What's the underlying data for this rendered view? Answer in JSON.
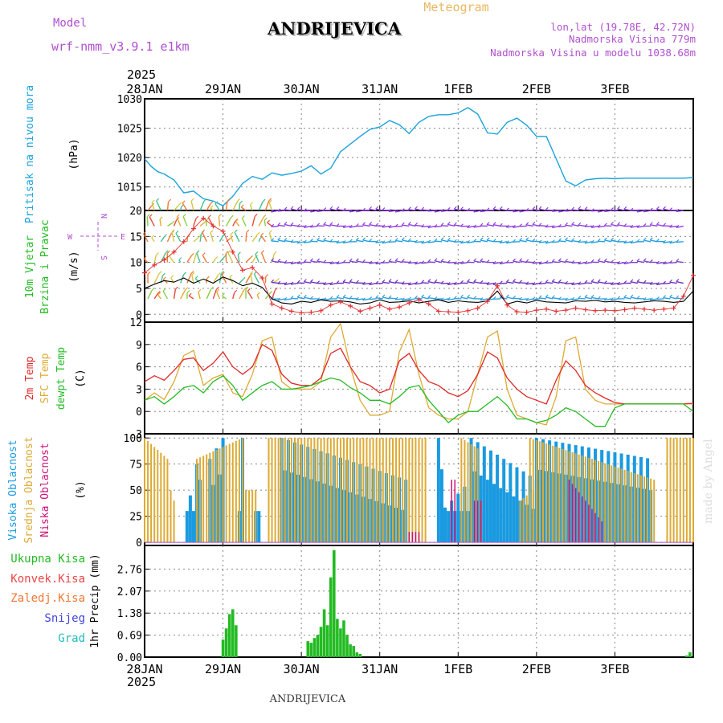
{
  "header": {
    "model_label": "Model",
    "model_name": "wrf-nmm_v3.9.1 e1km",
    "station": "ANDRIJEVICA",
    "meteogram": "Meteogram",
    "lonlat": "lon,lat (19.78E, 42.72N)",
    "elevation": "Nadmorska Visina 779m",
    "model_elevation": "Nadmorska Visina u modelu 1038.68m",
    "year": "2025"
  },
  "footer": {
    "station": "ANDRIJEVICA",
    "year": "2025",
    "credit": "made by Angel"
  },
  "colors": {
    "pressure": "#1aa3dd",
    "purple": "#b050d0",
    "green": "#22bb22",
    "red": "#e02828",
    "orange": "#ddaa33",
    "magenta": "#cc1177",
    "blue_bar": "#1a9ae0",
    "konvek": "#ee4444",
    "zaledj": "#ee7733",
    "snijeg": "#4444dd",
    "grad": "#22bbbb",
    "wind_line": "#000000",
    "gust_marker": "#e03030"
  },
  "chart_data": [
    {
      "type": "line",
      "panel": "pressure",
      "ylabel_left": "Pritisak na nivou mora",
      "ylabel": "(hPa)",
      "ylim": [
        1011,
        1030
      ],
      "yticks": [
        "1030",
        "1025",
        "1020",
        "1015"
      ],
      "xtick_labels": [
        "28JAN",
        "29JAN",
        "30JAN",
        "31JAN",
        "1FEB",
        "2FEB",
        "3FEB"
      ],
      "grid": true,
      "x_unit": "hours since 28JAN 00:00",
      "x": [
        0,
        2,
        4,
        6,
        9,
        12,
        15,
        18,
        21,
        24,
        27,
        30,
        33,
        36,
        39,
        42,
        45,
        48,
        51,
        54,
        57,
        60,
        63,
        66,
        69,
        72,
        75,
        78,
        81,
        84,
        87,
        90,
        93,
        96,
        99,
        102,
        105,
        108,
        111,
        114,
        117,
        120,
        123,
        126,
        129,
        132,
        135,
        138,
        141,
        144,
        147,
        150,
        153,
        156,
        159,
        162,
        165,
        168
      ],
      "series": [
        {
          "values": [
            1019.8,
            1018.5,
            1017.6,
            1017.2,
            1016.2,
            1014.0,
            1014.3,
            1013.0,
            1012.6,
            1011.8,
            1013.4,
            1015.6,
            1016.8,
            1016.3,
            1017.4,
            1017.0,
            1017.3,
            1017.7,
            1018.6,
            1017.2,
            1018.2,
            1021.0,
            1022.3,
            1023.6,
            1024.8,
            1025.2,
            1026.3,
            1025.6,
            1024.1,
            1026.0,
            1027.0,
            1027.3,
            1027.3,
            1027.6,
            1028.5,
            1027.4,
            1024.2,
            1024.0,
            1026.0,
            1026.7,
            1025.5,
            1023.6,
            1023.6,
            1019.8,
            1016.0,
            1015.2,
            1016.2,
            1016.4,
            1016.5,
            1016.4,
            1016.5,
            1016.5,
            1016.5,
            1016.5,
            1016.5,
            1016.5,
            1016.5,
            1016.6
          ]
        }
      ]
    },
    {
      "type": "line",
      "panel": "wind",
      "ylabel_left": [
        "10m Vjetar",
        "Brzina i Pravac"
      ],
      "ylabel": "(m/s)",
      "ylim": [
        -1.5,
        20
      ],
      "yticks": [
        "20",
        "15",
        "10",
        "5",
        "0"
      ],
      "compass": {
        "n": "N",
        "s": "S",
        "e": "E",
        "w": "W"
      },
      "barb_levels": [
        20,
        17,
        14,
        10,
        6,
        3
      ],
      "x": [
        0,
        3,
        6,
        9,
        12,
        15,
        18,
        21,
        24,
        27,
        30,
        33,
        36,
        39,
        42,
        45,
        48,
        51,
        54,
        57,
        60,
        63,
        66,
        69,
        72,
        75,
        78,
        81,
        84,
        87,
        90,
        93,
        96,
        99,
        102,
        105,
        108,
        111,
        114,
        117,
        120,
        123,
        126,
        129,
        132,
        135,
        138,
        141,
        144,
        147,
        150,
        153,
        156,
        159,
        162,
        165,
        168
      ],
      "series": [
        {
          "name": "wind",
          "values": [
            5.0,
            5.8,
            6.5,
            6.2,
            7.0,
            6.0,
            6.8,
            6.0,
            7.2,
            6.5,
            5.5,
            6.0,
            5.2,
            3.0,
            2.2,
            2.0,
            2.5,
            2.3,
            2.8,
            2.5,
            2.6,
            2.4,
            2.0,
            2.2,
            2.8,
            2.3,
            2.4,
            2.6,
            2.2,
            2.5,
            2.8,
            2.3,
            2.6,
            2.4,
            2.3,
            2.6,
            4.5,
            2.0,
            2.5,
            2.2,
            2.7,
            2.4,
            2.3,
            2.2,
            2.6,
            2.5,
            2.7,
            2.4,
            2.5,
            2.3,
            2.2,
            2.4,
            2.6,
            2.5,
            2.3,
            2.5,
            4.5
          ]
        },
        {
          "name": "gust",
          "values": [
            8.0,
            9.5,
            10.5,
            12.0,
            14.0,
            16.5,
            18.5,
            17.0,
            16.0,
            12.0,
            8.5,
            9.0,
            7.0,
            2.0,
            1.2,
            0.6,
            0.3,
            0.4,
            0.7,
            1.8,
            2.4,
            1.6,
            0.6,
            1.2,
            1.8,
            1.0,
            1.4,
            2.2,
            2.8,
            2.0,
            0.6,
            0.5,
            0.4,
            0.7,
            1.2,
            2.5,
            5.5,
            1.8,
            0.5,
            0.4,
            0.8,
            1.0,
            0.6,
            0.8,
            1.2,
            0.9,
            0.7,
            0.8,
            0.7,
            0.9,
            1.2,
            1.0,
            0.8,
            1.0,
            1.2,
            3.5,
            7.5
          ]
        }
      ]
    },
    {
      "type": "line",
      "panel": "temperature",
      "ylabel_left": [
        "2m Temp",
        "SFC Temp",
        "dewpt Temp"
      ],
      "ylabel": "(C)",
      "ylim": [
        -3,
        12
      ],
      "yticks": [
        "12",
        "9",
        "6",
        "3",
        "0",
        "-3"
      ],
      "x": [
        0,
        3,
        6,
        9,
        12,
        15,
        18,
        21,
        24,
        27,
        30,
        33,
        36,
        39,
        42,
        45,
        48,
        51,
        54,
        57,
        60,
        63,
        66,
        69,
        72,
        75,
        78,
        81,
        84,
        87,
        90,
        93,
        96,
        99,
        102,
        105,
        108,
        111,
        114,
        117,
        120,
        123,
        126,
        129,
        132,
        135,
        138,
        141,
        144,
        147,
        150,
        153,
        156,
        159,
        162,
        165,
        168
      ],
      "series": [
        {
          "name": "2m Temp",
          "values": [
            4.0,
            4.8,
            4.2,
            5.5,
            7.0,
            7.2,
            5.5,
            6.5,
            8.0,
            6.0,
            5.0,
            6.0,
            9.0,
            8.2,
            5.0,
            3.8,
            3.5,
            3.5,
            4.5,
            7.8,
            8.5,
            6.0,
            4.0,
            3.5,
            2.5,
            3.0,
            6.8,
            7.8,
            5.5,
            4.0,
            3.5,
            2.5,
            2.0,
            2.8,
            5.0,
            8.0,
            7.2,
            4.5,
            3.0,
            2.0,
            1.5,
            1.0,
            4.2,
            6.8,
            5.5,
            3.5,
            2.5,
            1.8,
            1.2,
            1.0,
            1.0,
            1.0,
            1.0,
            1.0,
            1.0,
            1.0,
            1.1
          ]
        },
        {
          "name": "SFC Temp",
          "values": [
            1.5,
            2.5,
            1.6,
            4.0,
            7.5,
            8.2,
            3.5,
            4.5,
            5.0,
            2.5,
            2.0,
            5.0,
            9.5,
            10.0,
            4.0,
            3.0,
            3.0,
            3.0,
            4.0,
            10.0,
            11.8,
            6.0,
            1.5,
            -0.5,
            -0.5,
            0.0,
            8.0,
            11.0,
            5.0,
            0.5,
            -0.5,
            -1.0,
            -1.0,
            0.0,
            5.0,
            10.0,
            10.8,
            3.0,
            -0.5,
            -1.0,
            -1.5,
            -1.8,
            2.0,
            9.5,
            10.0,
            3.0,
            1.5,
            1.0,
            1.0,
            1.0,
            1.0,
            1.0,
            1.0,
            1.0,
            1.0,
            1.0,
            1.0
          ]
        },
        {
          "name": "dewpt Temp",
          "values": [
            1.5,
            2.0,
            1.0,
            2.0,
            3.2,
            3.5,
            2.5,
            4.0,
            4.8,
            3.5,
            1.5,
            2.5,
            3.5,
            4.0,
            3.0,
            3.0,
            3.2,
            3.5,
            4.0,
            4.5,
            4.2,
            3.2,
            2.5,
            1.5,
            1.5,
            1.0,
            2.0,
            3.2,
            3.5,
            1.5,
            0.0,
            -1.5,
            -0.5,
            0.0,
            0.0,
            1.0,
            2.0,
            0.8,
            -1.0,
            -1.0,
            -1.5,
            -1.2,
            -0.5,
            0.5,
            0.0,
            -1.0,
            -2.0,
            -2.0,
            0.5,
            1.0,
            1.0,
            1.0,
            1.0,
            1.0,
            1.0,
            1.0,
            0.0
          ]
        }
      ]
    },
    {
      "type": "bar",
      "panel": "cloud",
      "ylabel_left": [
        "Visoka Oblacnost",
        "Srednja Oblacnost",
        "Niska Oblacnost"
      ],
      "ylabel": "(%)",
      "ylim": [
        0,
        100
      ],
      "yticks": [
        "100",
        "75",
        "50",
        "25",
        "0"
      ],
      "series": [
        {
          "name": "Visoka Oblacnost",
          "segments": [
            [
              13,
              17,
              30,
              90
            ],
            [
              20,
              24,
              80,
              100
            ],
            [
              29,
              30,
              50,
              100
            ],
            [
              34,
              35,
              30,
              60
            ],
            [
              42,
              80,
              100,
              60
            ],
            [
              90,
              91,
              100,
              100
            ],
            [
              91,
              100,
              30,
              60
            ],
            [
              100,
              120,
              100,
              60
            ],
            [
              120,
              155,
              100,
              80
            ]
          ]
        },
        {
          "name": "Srednja Oblacnost",
          "segments": [
            [
              0,
              7,
              100,
              80
            ],
            [
              7,
              9,
              60,
              40
            ],
            [
              16,
              30,
              80,
              100
            ],
            [
              30,
              34,
              50,
              50
            ],
            [
              38,
              86,
              100,
              100
            ],
            [
              97,
              102,
              100,
              90
            ],
            [
              101,
              103,
              40,
              40
            ],
            [
              115,
              123,
              40,
              60
            ],
            [
              118,
              156,
              100,
              60
            ],
            [
              160,
              168,
              100,
              100
            ]
          ]
        },
        {
          "name": "Niska Oblacnost",
          "segments": [
            [
              81,
              84,
              10,
              10
            ],
            [
              94,
              95,
              60,
              60
            ],
            [
              101,
              103,
              40,
              40
            ],
            [
              130,
              140,
              60,
              20
            ]
          ]
        }
      ]
    },
    {
      "type": "bar",
      "panel": "precipitation",
      "legend": [
        "Ukupna Kisa",
        "Konvek.Kisa",
        "Zaledj.Kisa",
        "Snijeg",
        "Grad"
      ],
      "ylabel": "1hr Precip (mm)",
      "ylim": [
        0,
        3.5
      ],
      "yticks": [
        "2.76",
        "2.07",
        "1.38",
        "0.69",
        "0.00"
      ],
      "series": [
        {
          "name": "Ukupna Kisa",
          "x": [
            24,
            25,
            26,
            27,
            28,
            50,
            51,
            52,
            53,
            54,
            55,
            56,
            57,
            58,
            59,
            60,
            61,
            62,
            63,
            64,
            65,
            66,
            166,
            167
          ],
          "values": [
            0.55,
            0.9,
            1.35,
            1.5,
            1.0,
            0.5,
            0.45,
            0.6,
            0.7,
            0.95,
            1.5,
            1.0,
            2.5,
            3.35,
            1.2,
            0.9,
            1.15,
            0.7,
            0.4,
            0.35,
            0.15,
            0.1,
            0.05,
            0.15
          ]
        }
      ]
    }
  ]
}
